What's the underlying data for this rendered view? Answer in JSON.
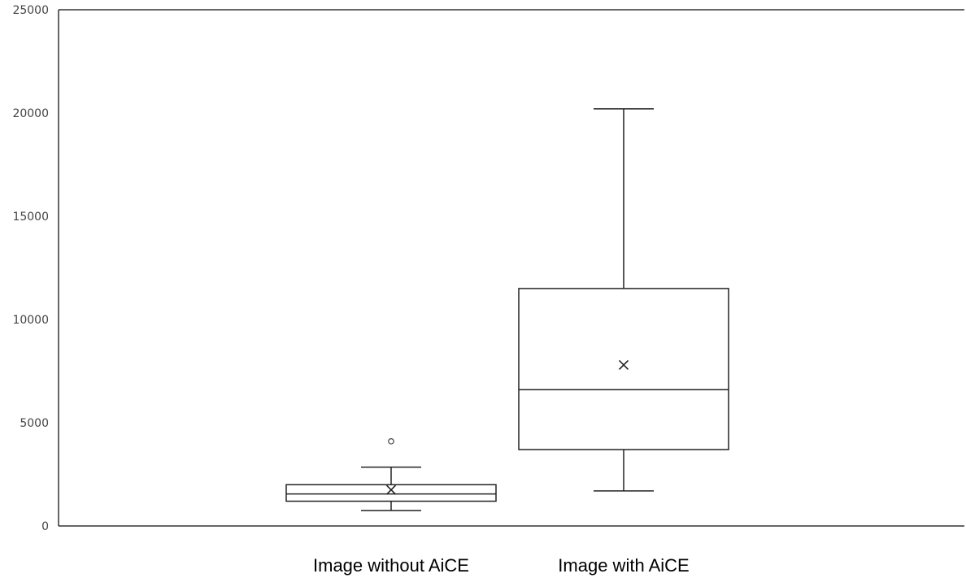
{
  "chart_data": {
    "type": "box",
    "title": "",
    "xlabel": "",
    "ylabel": "",
    "ylim": [
      0,
      25000
    ],
    "yticks": [
      0,
      5000,
      10000,
      15000,
      20000,
      25000
    ],
    "grid": false,
    "legend": "none",
    "categories": [
      "Image without AiCE",
      "Image with AiCE"
    ],
    "boxes": [
      {
        "category": "Image without AiCE",
        "whisker_low": 750,
        "q1": 1200,
        "median": 1550,
        "q3": 2000,
        "whisker_high": 2850,
        "mean": 1750,
        "outliers": [
          4100
        ]
      },
      {
        "category": "Image with AiCE",
        "whisker_low": 1700,
        "q1": 3700,
        "median": 6600,
        "q3": 11500,
        "whisker_high": 20200,
        "mean": 7800,
        "outliers": []
      }
    ]
  }
}
